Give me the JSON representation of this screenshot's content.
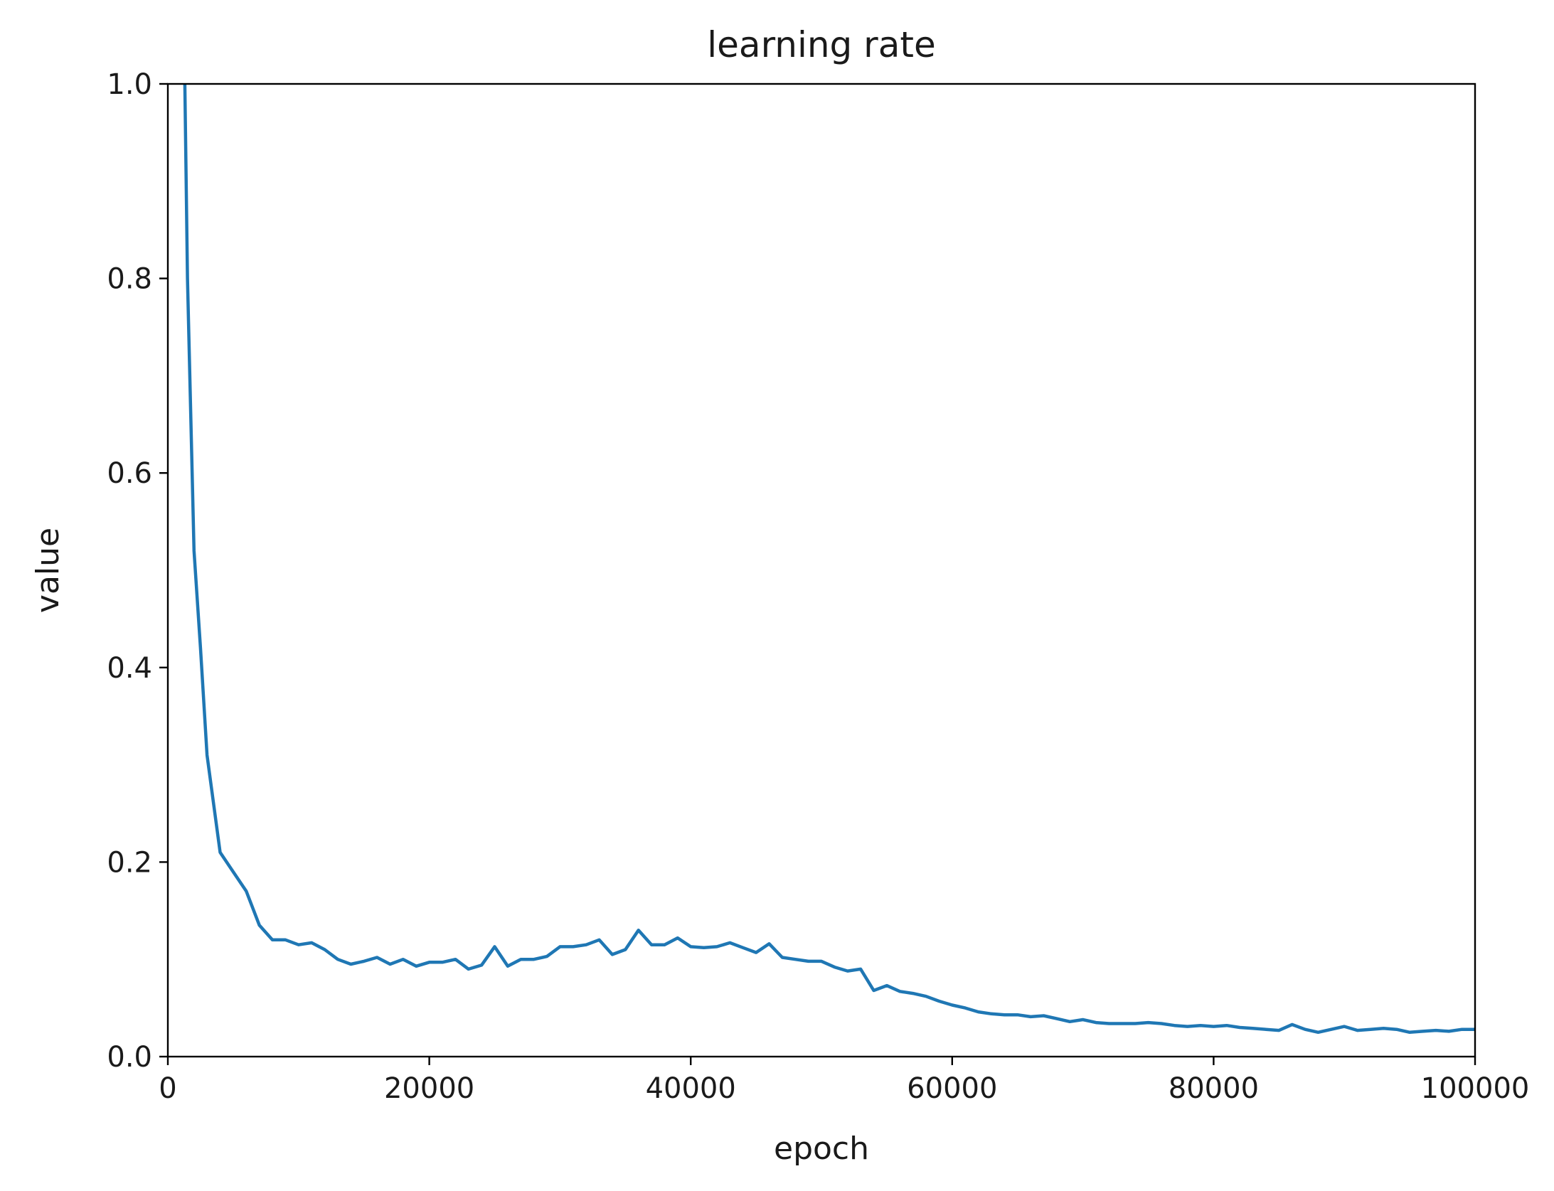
{
  "chart_data": {
    "type": "line",
    "title": "learning rate",
    "xlabel": "epoch",
    "ylabel": "value",
    "xlim": [
      0,
      100000
    ],
    "ylim": [
      0.0,
      1.0
    ],
    "xticks": [
      0,
      20000,
      40000,
      60000,
      80000,
      100000
    ],
    "xtick_labels": [
      "0",
      "20000",
      "40000",
      "60000",
      "80000",
      "100000"
    ],
    "yticks": [
      0.0,
      0.2,
      0.4,
      0.6,
      0.8,
      1.0
    ],
    "ytick_labels": [
      "0.0",
      "0.2",
      "0.4",
      "0.6",
      "0.8",
      "1.0"
    ],
    "grid": false,
    "series": [
      {
        "color": "#1f77b4",
        "x": [
          1300,
          1500,
          2000,
          2500,
          3000,
          3500,
          4000,
          5000,
          6000,
          7000,
          8000,
          9000,
          10000,
          11000,
          12000,
          13000,
          14000,
          15000,
          16000,
          17000,
          18000,
          19000,
          20000,
          21000,
          22000,
          23000,
          24000,
          25000,
          26000,
          27000,
          28000,
          29000,
          30000,
          31000,
          32000,
          33000,
          34000,
          35000,
          36000,
          37000,
          38000,
          39000,
          40000,
          41000,
          42000,
          43000,
          44000,
          45000,
          46000,
          47000,
          48000,
          49000,
          50000,
          51000,
          52000,
          53000,
          54000,
          55000,
          56000,
          57000,
          58000,
          59000,
          60000,
          61000,
          62000,
          63000,
          64000,
          65000,
          66000,
          67000,
          68000,
          69000,
          70000,
          71000,
          72000,
          73000,
          74000,
          75000,
          76000,
          77000,
          78000,
          79000,
          80000,
          81000,
          82000,
          83000,
          84000,
          85000,
          86000,
          87000,
          88000,
          89000,
          90000,
          91000,
          92000,
          93000,
          94000,
          95000,
          96000,
          97000,
          98000,
          99000,
          100000
        ],
        "values": [
          1.0,
          0.8,
          0.52,
          0.42,
          0.31,
          0.26,
          0.21,
          0.19,
          0.17,
          0.135,
          0.12,
          0.12,
          0.115,
          0.117,
          0.11,
          0.1,
          0.095,
          0.098,
          0.102,
          0.095,
          0.1,
          0.093,
          0.097,
          0.097,
          0.1,
          0.09,
          0.094,
          0.113,
          0.093,
          0.1,
          0.1,
          0.103,
          0.113,
          0.113,
          0.115,
          0.12,
          0.105,
          0.11,
          0.13,
          0.115,
          0.115,
          0.122,
          0.113,
          0.112,
          0.113,
          0.117,
          0.112,
          0.107,
          0.116,
          0.102,
          0.1,
          0.098,
          0.098,
          0.092,
          0.088,
          0.09,
          0.068,
          0.073,
          0.067,
          0.065,
          0.062,
          0.057,
          0.053,
          0.05,
          0.046,
          0.044,
          0.043,
          0.043,
          0.041,
          0.042,
          0.039,
          0.036,
          0.038,
          0.035,
          0.034,
          0.034,
          0.034,
          0.035,
          0.034,
          0.032,
          0.031,
          0.032,
          0.031,
          0.032,
          0.03,
          0.029,
          0.028,
          0.027,
          0.033,
          0.028,
          0.025,
          0.028,
          0.031,
          0.027,
          0.028,
          0.029,
          0.028,
          0.025,
          0.026,
          0.027,
          0.026,
          0.028,
          0.028
        ]
      }
    ]
  }
}
